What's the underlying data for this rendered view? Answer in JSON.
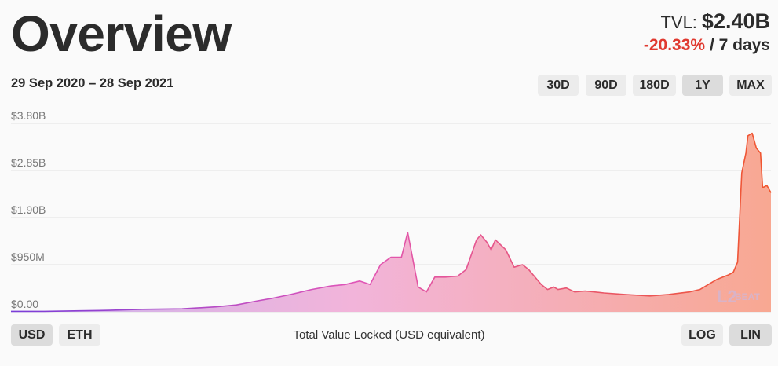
{
  "header": {
    "title": "Overview",
    "tvl_label": "TVL:",
    "tvl_value": "$2.40B",
    "change_value": "-20.33%",
    "change_period": "/ 7 days",
    "date_range": "29 Sep 2020 – 28 Sep 2021"
  },
  "range_buttons": [
    {
      "label": "30D",
      "active": false
    },
    {
      "label": "90D",
      "active": false
    },
    {
      "label": "180D",
      "active": false
    },
    {
      "label": "1Y",
      "active": true
    },
    {
      "label": "MAX",
      "active": false
    }
  ],
  "currency_buttons": [
    {
      "label": "USD",
      "active": true
    },
    {
      "label": "ETH",
      "active": false
    }
  ],
  "scale_buttons": [
    {
      "label": "LOG",
      "active": false
    },
    {
      "label": "LIN",
      "active": true
    }
  ],
  "footer": {
    "description": "Total Value Locked (USD equivalent)"
  },
  "watermark": "L2BEAT",
  "colors": {
    "gradient_start": "#7a3dd8",
    "gradient_mid": "#e055b8",
    "gradient_end": "#f0562e",
    "change_negative": "#e0392f"
  },
  "chart_data": {
    "type": "area",
    "title": "",
    "xlabel": "",
    "ylabel": "",
    "ylim": [
      0,
      3.8
    ],
    "y_unit": "billion USD",
    "ytick_labels": [
      "$0.00",
      "$950M",
      "$1.90B",
      "$2.85B",
      "$3.80B"
    ],
    "grid": true,
    "x_range": [
      "2020-09-29",
      "2021-09-28"
    ],
    "series": [
      {
        "x": [
          "2020-09-29",
          "2020-10-15",
          "2020-11-01",
          "2020-11-15",
          "2020-12-01",
          "2020-12-20",
          "2021-01-05",
          "2021-01-15",
          "2021-01-25",
          "2021-02-01",
          "2021-02-10",
          "2021-02-20",
          "2021-03-01",
          "2021-03-08",
          "2021-03-15",
          "2021-03-20",
          "2021-03-25",
          "2021-03-30",
          "2021-04-04",
          "2021-04-07",
          "2021-04-12",
          "2021-04-16",
          "2021-04-20",
          "2021-04-25",
          "2021-05-01",
          "2021-05-05",
          "2021-05-10",
          "2021-05-12",
          "2021-05-15",
          "2021-05-17",
          "2021-05-19",
          "2021-05-24",
          "2021-05-28",
          "2021-06-01",
          "2021-06-04",
          "2021-06-06",
          "2021-06-10",
          "2021-06-13",
          "2021-06-16",
          "2021-06-18",
          "2021-06-22",
          "2021-06-26",
          "2021-07-01",
          "2021-07-10",
          "2021-07-20",
          "2021-08-01",
          "2021-08-10",
          "2021-08-20",
          "2021-08-25",
          "2021-08-31",
          "2021-09-02",
          "2021-09-05",
          "2021-09-08",
          "2021-09-10",
          "2021-09-12",
          "2021-09-14",
          "2021-09-16",
          "2021-09-17",
          "2021-09-19",
          "2021-09-21",
          "2021-09-23",
          "2021-09-24",
          "2021-09-26",
          "2021-09-28"
        ],
        "values": [
          0.01,
          0.01,
          0.02,
          0.03,
          0.05,
          0.06,
          0.1,
          0.14,
          0.22,
          0.27,
          0.35,
          0.45,
          0.52,
          0.55,
          0.62,
          0.55,
          0.95,
          1.1,
          1.1,
          1.6,
          0.5,
          0.4,
          0.7,
          0.7,
          0.72,
          0.85,
          1.45,
          1.55,
          1.4,
          1.25,
          1.45,
          1.25,
          0.9,
          0.95,
          0.85,
          0.75,
          0.55,
          0.45,
          0.5,
          0.45,
          0.48,
          0.4,
          0.42,
          0.38,
          0.35,
          0.32,
          0.35,
          0.4,
          0.45,
          0.6,
          0.65,
          0.7,
          0.75,
          0.8,
          1.0,
          2.8,
          3.2,
          3.55,
          3.6,
          3.3,
          3.2,
          2.5,
          2.55,
          2.4
        ]
      }
    ]
  }
}
